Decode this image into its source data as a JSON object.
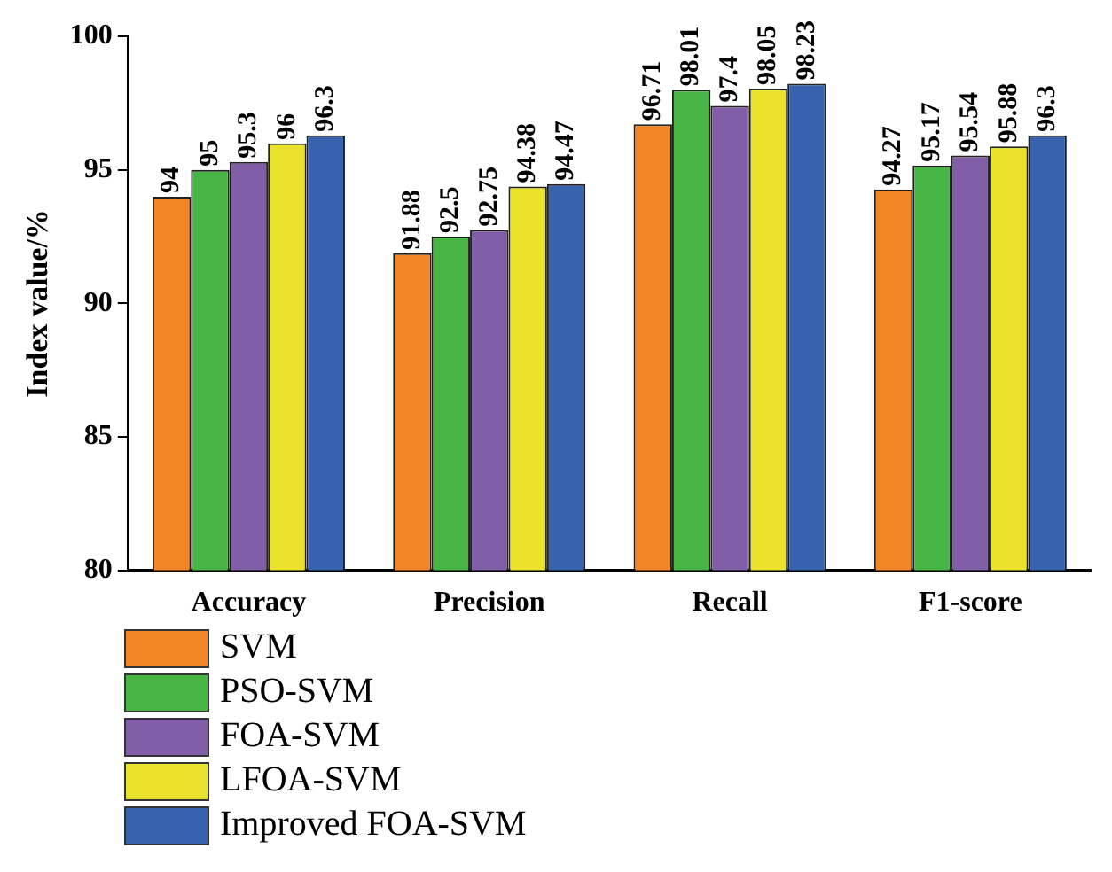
{
  "chart_data": {
    "type": "bar",
    "ylabel": "Index value/%",
    "categories": [
      "Accuracy",
      "Precision",
      "Recall",
      "F1-score"
    ],
    "series": [
      {
        "name": "SVM",
        "color": "#f28526",
        "values": [
          94,
          91.88,
          96.71,
          94.27
        ]
      },
      {
        "name": "PSO-SVM",
        "color": "#47b543",
        "values": [
          95,
          92.5,
          98.01,
          95.17
        ]
      },
      {
        "name": "FOA-SVM",
        "color": "#825ea8",
        "values": [
          95.3,
          92.75,
          97.4,
          95.54
        ]
      },
      {
        "name": "LFOA-SVM",
        "color": "#ebe22e",
        "values": [
          96,
          94.38,
          98.05,
          95.88
        ]
      },
      {
        "name": "Improved FOA-SVM",
        "color": "#3762ae",
        "values": [
          96.3,
          94.47,
          98.23,
          96.3
        ]
      }
    ],
    "ylim": [
      80,
      100
    ],
    "yticks": [
      80,
      85,
      90,
      95,
      100
    ],
    "grid": false,
    "legend": "bottom left",
    "data_labels": true
  }
}
